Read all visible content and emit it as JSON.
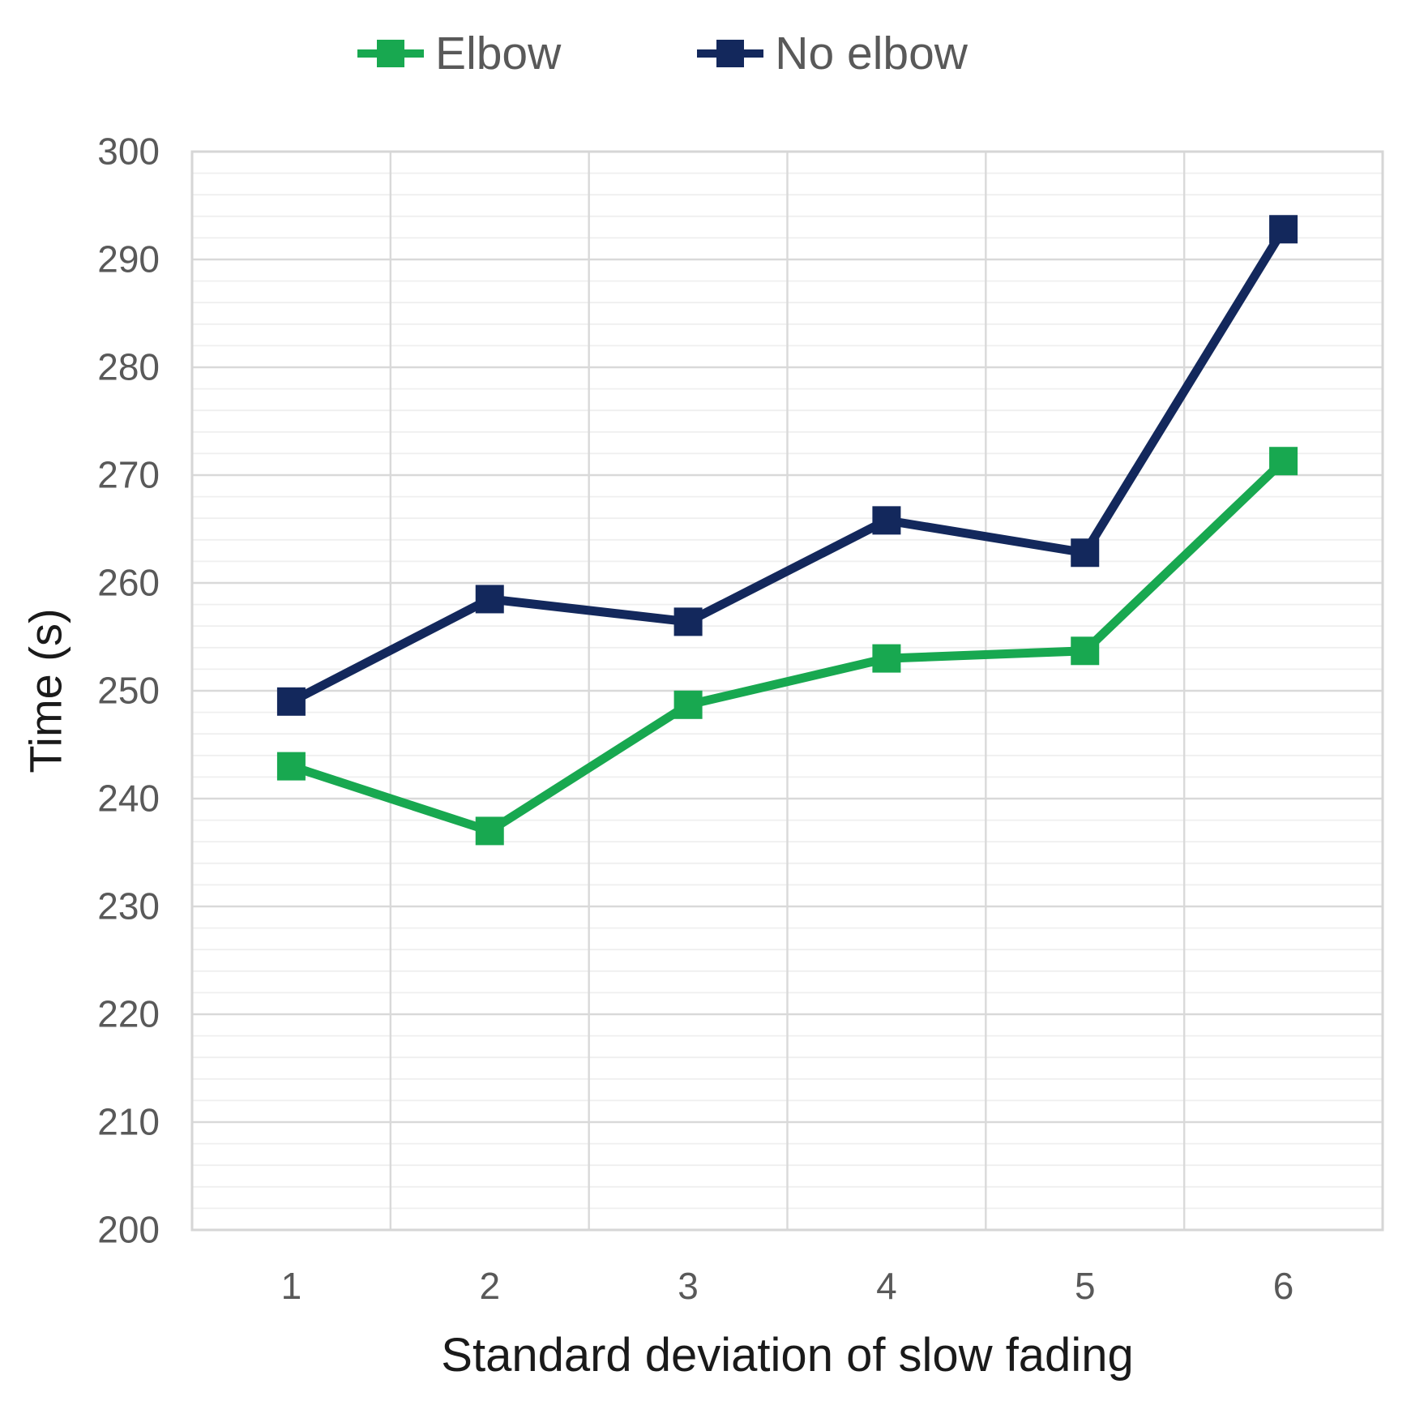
{
  "chart_data": {
    "type": "line",
    "xlabel": "Standard deviation of slow fading",
    "ylabel": "Time (s)",
    "categories": [
      1,
      2,
      3,
      4,
      5,
      6
    ],
    "series": [
      {
        "name": "Elbow",
        "color": "#18A850",
        "values": [
          243,
          237,
          248.7,
          253,
          253.7,
          271.3
        ]
      },
      {
        "name": "No elbow",
        "color": "#13285C",
        "values": [
          249,
          258.5,
          256.4,
          265.8,
          262.8,
          292.8
        ]
      }
    ],
    "ylim": [
      200,
      300
    ],
    "y_major_step": 10,
    "y_minor_step": 2,
    "marker": "square",
    "legend_position": "top",
    "grid": {
      "major_color": "#D9D9D9",
      "minor_color": "#EFEFEF",
      "border_color": "#D6D6D6",
      "vertical_gridlines": "between-categories"
    },
    "tick_label_color": "#595959",
    "axis_title_color": "#1A1A1A",
    "legend_text_color": "#595959"
  }
}
